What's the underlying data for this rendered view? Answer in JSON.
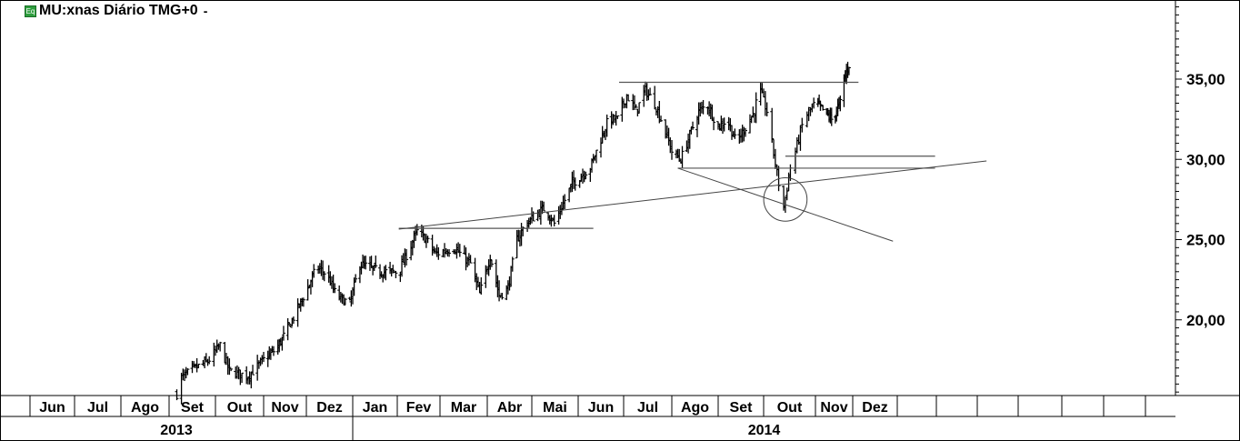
{
  "header": {
    "icon": "equity-icon",
    "icon_text": "Eq",
    "title": "MU:xnas Diário TMG+0",
    "menu_glyph": "-"
  },
  "chart_data": {
    "type": "ohlc",
    "symbol": "MU:xnas",
    "interval": "Diário",
    "timezone": "TMG+0",
    "y_ticks": [
      "20,00",
      "25,00",
      "30,00",
      "35,00"
    ],
    "y_tick_values": [
      20,
      25,
      30,
      35
    ],
    "ylim": [
      15.1,
      39.9
    ],
    "months": [
      "Jun",
      "Jul",
      "Ago",
      "Set",
      "Out",
      "Nov",
      "Dez",
      "Jan",
      "Fev",
      "Mar",
      "Abr",
      "Mai",
      "Jun",
      "Jul",
      "Ago",
      "Set",
      "Out",
      "Nov",
      "Dez",
      "",
      "",
      "",
      "",
      "",
      "",
      ""
    ],
    "month_starts": [
      "2013-06",
      "2013-07",
      "2013-08",
      "2013-09",
      "2013-10",
      "2013-11",
      "2013-12",
      "2014-01",
      "2014-02",
      "2014-03",
      "2014-04",
      "2014-05",
      "2014-06",
      "2014-07",
      "2014-08",
      "2014-09",
      "2014-10",
      "2014-11",
      "2014-12",
      "2015-01",
      "2015-02",
      "2015-03",
      "2015-04",
      "2015-05",
      "2015-06",
      "2015-07"
    ],
    "years": [
      {
        "label": "2013"
      },
      {
        "label": "2014"
      }
    ],
    "close_series": [
      [
        "2013-09-06",
        15.4
      ],
      [
        "2013-09-09",
        16.4
      ],
      [
        "2013-09-18",
        17.0
      ],
      [
        "2013-09-26",
        17.4
      ],
      [
        "2013-10-04",
        18.4
      ],
      [
        "2013-10-10",
        16.8
      ],
      [
        "2013-10-22",
        16.5
      ],
      [
        "2013-11-01",
        17.5
      ],
      [
        "2013-11-10",
        18.2
      ],
      [
        "2013-11-19",
        19.6
      ],
      [
        "2013-12-02",
        22.0
      ],
      [
        "2013-12-08",
        23.3
      ],
      [
        "2013-12-15",
        22.8
      ],
      [
        "2013-12-21",
        21.5
      ],
      [
        "2013-12-30",
        21.0
      ],
      [
        "2014-01-06",
        23.5
      ],
      [
        "2014-01-20",
        23.0
      ],
      [
        "2014-02-02",
        23.0
      ],
      [
        "2014-02-14",
        25.5
      ],
      [
        "2014-02-20",
        25.0
      ],
      [
        "2014-02-26",
        24.1
      ],
      [
        "2014-03-10",
        24.5
      ],
      [
        "2014-03-21",
        23.5
      ],
      [
        "2014-03-27",
        21.6
      ],
      [
        "2014-04-03",
        24.0
      ],
      [
        "2014-04-09",
        21.5
      ],
      [
        "2014-04-15",
        22.0
      ],
      [
        "2014-04-21",
        25.0
      ],
      [
        "2014-04-27",
        26.0
      ],
      [
        "2014-05-10",
        27.0
      ],
      [
        "2014-05-16",
        26.0
      ],
      [
        "2014-05-28",
        28.5
      ],
      [
        "2014-06-09",
        29.5
      ],
      [
        "2014-06-15",
        31.0
      ],
      [
        "2014-06-21",
        32.5
      ],
      [
        "2014-06-27",
        32.5
      ],
      [
        "2014-07-03",
        34.0
      ],
      [
        "2014-07-09",
        33.0
      ],
      [
        "2014-07-15",
        34.3
      ],
      [
        "2014-07-21",
        33.5
      ],
      [
        "2014-07-27",
        32.0
      ],
      [
        "2014-08-01",
        30.5
      ],
      [
        "2014-08-07",
        30.0
      ],
      [
        "2014-08-13",
        31.5
      ],
      [
        "2014-08-19",
        33.0
      ],
      [
        "2014-08-25",
        33.4
      ],
      [
        "2014-09-01",
        32.0
      ],
      [
        "2014-09-07",
        32.5
      ],
      [
        "2014-09-13",
        31.0
      ],
      [
        "2014-09-19",
        32.0
      ],
      [
        "2014-09-25",
        33.0
      ],
      [
        "2014-09-28",
        34.5
      ],
      [
        "2014-10-03",
        33.0
      ],
      [
        "2014-10-06",
        31.0
      ],
      [
        "2014-10-10",
        28.5
      ],
      [
        "2014-10-13",
        27.0
      ],
      [
        "2014-10-17",
        29.5
      ],
      [
        "2014-10-20",
        30.5
      ],
      [
        "2014-10-25",
        32.5
      ],
      [
        "2014-11-01",
        33.5
      ],
      [
        "2014-11-08",
        33.0
      ],
      [
        "2014-11-14",
        32.5
      ],
      [
        "2014-11-21",
        33.5
      ],
      [
        "2014-11-24",
        35.0
      ],
      [
        "2014-11-28",
        35.9
      ]
    ],
    "annotations": [
      {
        "type": "hline",
        "from": "2014-06-28",
        "to": "2014-12-05",
        "price": 34.8
      },
      {
        "type": "hline",
        "from": "2014-02-02",
        "to": "2014-06-11",
        "price": 25.7
      },
      {
        "type": "hline",
        "from": "2014-08-05",
        "to": "2015-01-31",
        "price": 29.45
      },
      {
        "type": "hline",
        "from": "2014-10-14",
        "to": "2015-01-31",
        "price": 30.2
      },
      {
        "type": "trendline",
        "from": [
          "2014-02-02",
          25.65
        ],
        "to": [
          "2015-03-08",
          29.9
        ]
      },
      {
        "type": "trendline",
        "from": [
          "2014-08-05",
          29.45
        ],
        "to": [
          "2014-12-29",
          24.9
        ]
      },
      {
        "type": "circle",
        "center": [
          "2014-10-14",
          27.5
        ],
        "radius_price": 1.35
      }
    ]
  }
}
